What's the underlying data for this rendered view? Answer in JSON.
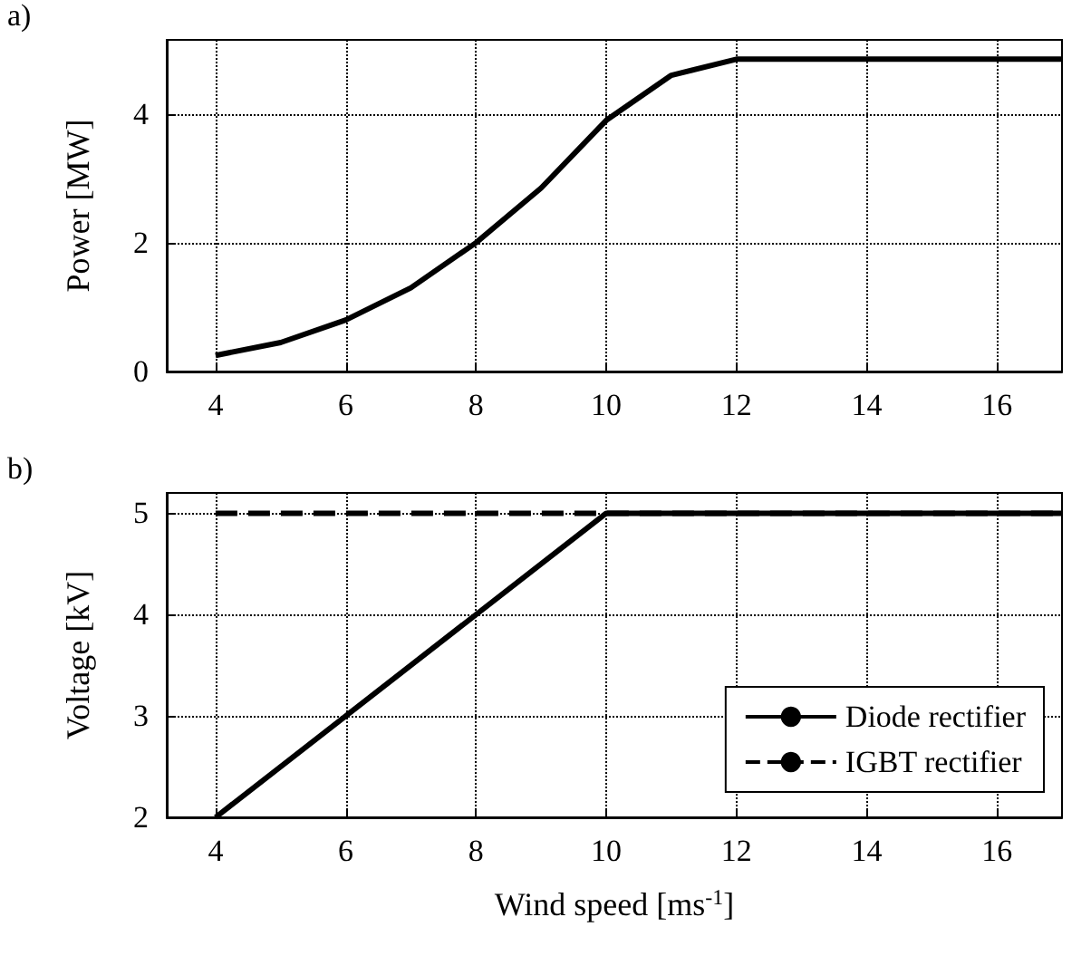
{
  "chart_data": [
    {
      "type": "line",
      "annotations": [
        "a)"
      ],
      "ylabel": "Power [MW]",
      "x": [
        4,
        5,
        6,
        7,
        8,
        9,
        10,
        11,
        12,
        13,
        14,
        15,
        16,
        17
      ],
      "series": [
        {
          "color": "#000000",
          "values": [
            0.25,
            0.45,
            0.8,
            1.3,
            2.0,
            2.85,
            3.9,
            4.6,
            4.85,
            4.85,
            4.85,
            4.85,
            4.85,
            4.85
          ]
        }
      ],
      "xlim": [
        3.25,
        17
      ],
      "ylim": [
        0,
        5.15
      ],
      "xticks": [
        4,
        6,
        8,
        10,
        12,
        14,
        16
      ],
      "yticks": [
        0,
        2,
        4
      ],
      "grid": true,
      "line_style": "solid",
      "marker": "none"
    },
    {
      "type": "line",
      "annotations": [
        "b)"
      ],
      "ylabel": "Voltage [kV]",
      "xlabel": "Wind speed [ms$^{-1}$]",
      "x": [
        4,
        10,
        17
      ],
      "series": [
        {
          "name": "Diode rectifier",
          "color": "#000000",
          "values": [
            2,
            5,
            5
          ],
          "line_style": "solid"
        },
        {
          "name": "IGBT rectifier",
          "color": "#000000",
          "values": [
            5,
            5,
            5
          ],
          "line_style": "dashed"
        }
      ],
      "xlim": [
        3.25,
        17
      ],
      "ylim": [
        2,
        5.2
      ],
      "xticks": [
        4,
        6,
        8,
        10,
        12,
        14,
        16
      ],
      "yticks": [
        2,
        3,
        4,
        5
      ],
      "grid": true,
      "legend": "bottom right",
      "marker": "none"
    }
  ]
}
